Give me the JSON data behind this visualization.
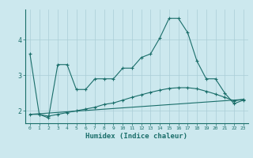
{
  "title": "",
  "xlabel": "Humidex (Indice chaleur)",
  "background_color": "#cce8ee",
  "grid_color": "#aacdd6",
  "line_color": "#1a6e6a",
  "x_ticks": [
    0,
    1,
    2,
    3,
    4,
    5,
    6,
    7,
    8,
    9,
    10,
    11,
    12,
    13,
    14,
    15,
    16,
    17,
    18,
    19,
    20,
    21,
    22,
    23
  ],
  "ylim": [
    1.65,
    4.85
  ],
  "xlim": [
    -0.5,
    23.5
  ],
  "series1_x": [
    0,
    1,
    2,
    3,
    4,
    5,
    6,
    7,
    8,
    9,
    10,
    11,
    12,
    13,
    14,
    15,
    16,
    17,
    18,
    19,
    20,
    21,
    22,
    23
  ],
  "series1_y": [
    3.6,
    1.9,
    1.8,
    3.3,
    3.3,
    2.6,
    2.6,
    2.9,
    2.9,
    2.9,
    3.2,
    3.2,
    3.5,
    3.6,
    4.05,
    4.6,
    4.6,
    4.2,
    3.4,
    2.9,
    2.9,
    2.5,
    2.2,
    2.3
  ],
  "series2_x": [
    0,
    1,
    2,
    3,
    4,
    5,
    6,
    7,
    8,
    9,
    10,
    11,
    12,
    13,
    14,
    15,
    16,
    17,
    18,
    19,
    20,
    21,
    22,
    23
  ],
  "series2_y": [
    1.9,
    1.9,
    1.85,
    1.9,
    1.95,
    2.0,
    2.05,
    2.1,
    2.18,
    2.22,
    2.3,
    2.38,
    2.45,
    2.52,
    2.58,
    2.63,
    2.65,
    2.65,
    2.62,
    2.55,
    2.47,
    2.38,
    2.28,
    2.32
  ],
  "series3_x": [
    0,
    23
  ],
  "series3_y": [
    1.9,
    2.32
  ],
  "ytick_labels": [
    "2",
    "3",
    "4"
  ],
  "ytick_values": [
    2.0,
    3.0,
    4.0
  ]
}
